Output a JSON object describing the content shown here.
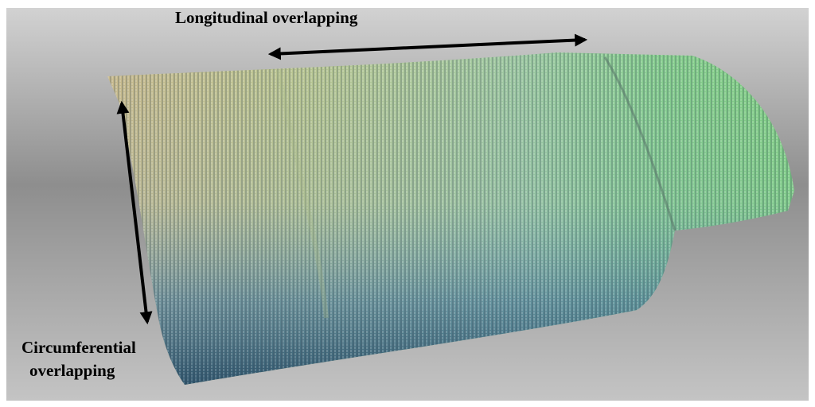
{
  "labels": {
    "longitudinal": "Longitudinal overlapping",
    "circumferential": [
      "Circumferential",
      "overlapping"
    ]
  }
}
